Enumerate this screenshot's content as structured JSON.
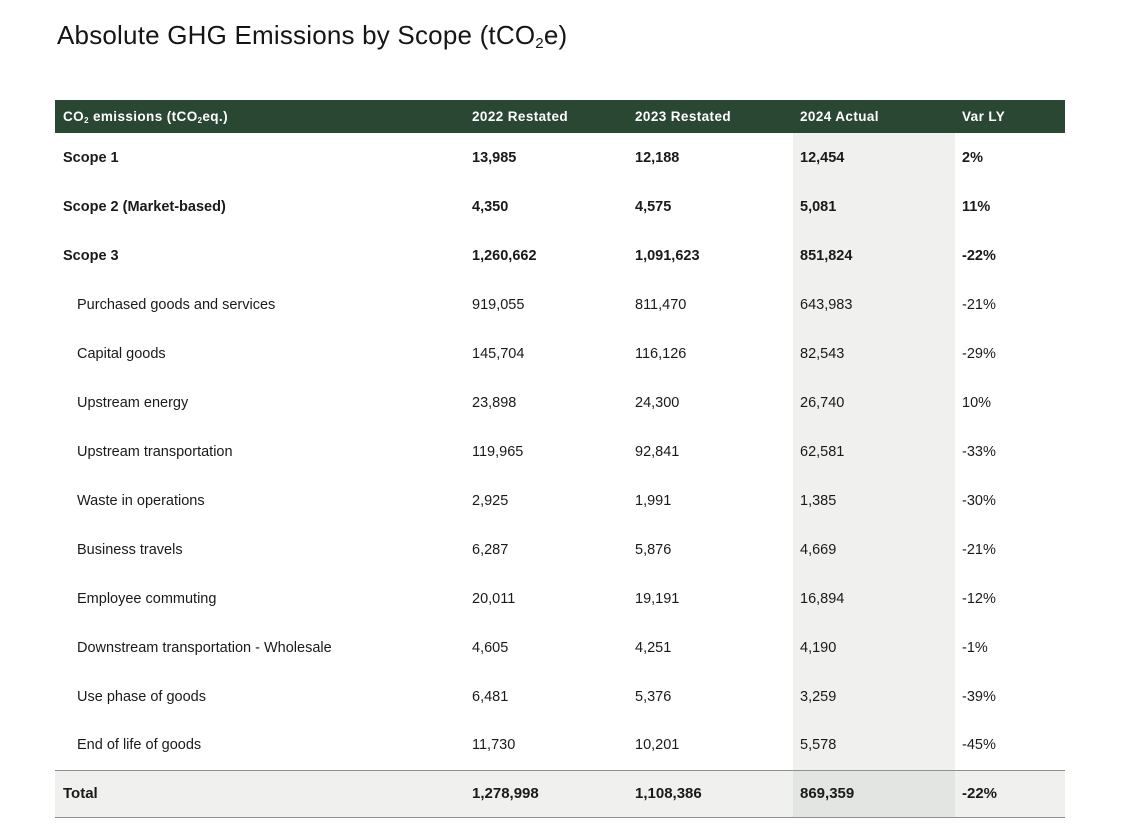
{
  "title": {
    "parts": [
      "Absolute GHG Emissions by Scope (tCO",
      "2",
      "e)"
    ]
  },
  "table": {
    "header": {
      "metric_parts": [
        "CO",
        "2",
        " emissions (tCO",
        "2",
        "eq.)"
      ],
      "columns": [
        "2022 Restated",
        "2023 Restated",
        "2024 Actual",
        "Var LY"
      ]
    },
    "rows": [
      {
        "label": "Scope 1",
        "group": true,
        "values": [
          "13,985",
          "12,188",
          "12,454",
          "2%"
        ]
      },
      {
        "label": "Scope 2 (Market-based)",
        "group": true,
        "values": [
          "4,350",
          "4,575",
          "5,081",
          "11%"
        ]
      },
      {
        "label": "Scope 3",
        "group": true,
        "values": [
          "1,260,662",
          "1,091,623",
          "851,824",
          "-22%"
        ]
      },
      {
        "label": "Purchased goods and services",
        "group": false,
        "values": [
          "919,055",
          "811,470",
          "643,983",
          "-21%"
        ]
      },
      {
        "label": "Capital goods",
        "group": false,
        "values": [
          "145,704",
          "116,126",
          "82,543",
          "-29%"
        ]
      },
      {
        "label": "Upstream energy",
        "group": false,
        "values": [
          "23,898",
          "24,300",
          "26,740",
          "10%"
        ]
      },
      {
        "label": "Upstream transportation",
        "group": false,
        "values": [
          "119,965",
          "92,841",
          "62,581",
          "-33%"
        ]
      },
      {
        "label": "Waste in operations",
        "group": false,
        "values": [
          "2,925",
          "1,991",
          "1,385",
          "-30%"
        ]
      },
      {
        "label": "Business travels",
        "group": false,
        "values": [
          "6,287",
          "5,876",
          "4,669",
          "-21%"
        ]
      },
      {
        "label": "Employee commuting",
        "group": false,
        "values": [
          "20,011",
          "19,191",
          "16,894",
          "-12%"
        ]
      },
      {
        "label": "Downstream transportation - Wholesale",
        "group": false,
        "values": [
          "4,605",
          "4,251",
          "4,190",
          "-1%"
        ]
      },
      {
        "label": "Use phase of goods",
        "group": false,
        "values": [
          "6,481",
          "5,376",
          "3,259",
          "-39%"
        ]
      },
      {
        "label": "End of life of goods",
        "group": false,
        "values": [
          "11,730",
          "10,201",
          "5,578",
          "-45%"
        ]
      }
    ],
    "total": {
      "label": "Total",
      "values": [
        "1,278,998",
        "1,108,386",
        "869,359",
        "-22%"
      ]
    }
  },
  "colors": {
    "header_background": "#2A4733",
    "header_text": "#FFFFFF",
    "column_highlight": "#F0F0EF",
    "total_row_background": "#F0F0EF",
    "total_highlight_overlap": "#E3E5E2",
    "body_text": "#1A1A1A",
    "total_border": "#8D918D"
  }
}
